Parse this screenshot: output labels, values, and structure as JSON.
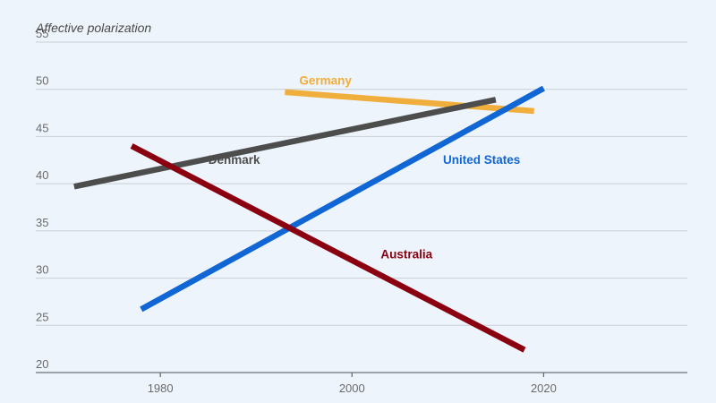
{
  "chart_data": {
    "type": "line",
    "title": "",
    "ylabel": "Affective polarization",
    "xlabel": "",
    "ylim": [
      20,
      55
    ],
    "xlim": [
      1967,
      2035
    ],
    "yticks": [
      20,
      25,
      30,
      35,
      40,
      45,
      50,
      55
    ],
    "xticks": [
      1980,
      2000,
      2020
    ],
    "grid": true,
    "legend": "inline labels",
    "series": [
      {
        "name": "Germany",
        "color": "#f0ae3c",
        "x": [
          1993,
          2019
        ],
        "values": [
          49.7,
          47.7
        ]
      },
      {
        "name": "Denmark",
        "color": "#4d4d4d",
        "x": [
          1971,
          2015
        ],
        "values": [
          39.7,
          48.9
        ]
      },
      {
        "name": "United States",
        "color": "#1166d6",
        "x": [
          1978,
          2020
        ],
        "values": [
          26.7,
          50.1
        ]
      },
      {
        "name": "Australia",
        "color": "#8b0010",
        "x": [
          1977,
          2018
        ],
        "values": [
          44.0,
          22.4
        ]
      }
    ]
  }
}
